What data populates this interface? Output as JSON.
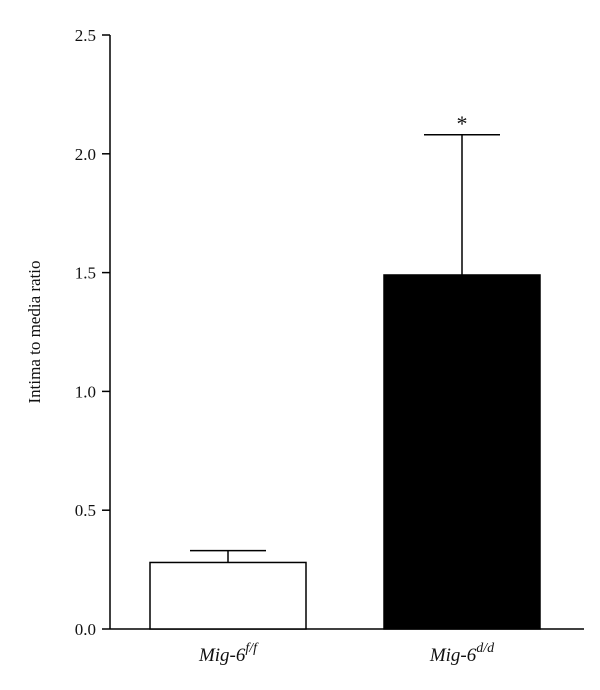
{
  "chart_data": {
    "type": "bar",
    "title": "",
    "xlabel": "",
    "ylabel": "Intima to media ratio",
    "ylim": [
      0,
      2.5
    ],
    "yticks": [
      "0.0",
      "0.5",
      "1.0",
      "1.5",
      "2.0",
      "2.5"
    ],
    "categories": [
      {
        "base": "Mig-6",
        "sup": "f/f"
      },
      {
        "base": "Mig-6",
        "sup": "d/d"
      }
    ],
    "values": [
      0.28,
      1.49
    ],
    "errors": [
      0.05,
      0.59
    ],
    "bar_fills": [
      "#ffffff",
      "#000000"
    ],
    "bar_stroke": "#000000",
    "annotations": [
      "",
      "*"
    ],
    "grid": false,
    "legend": "none"
  }
}
